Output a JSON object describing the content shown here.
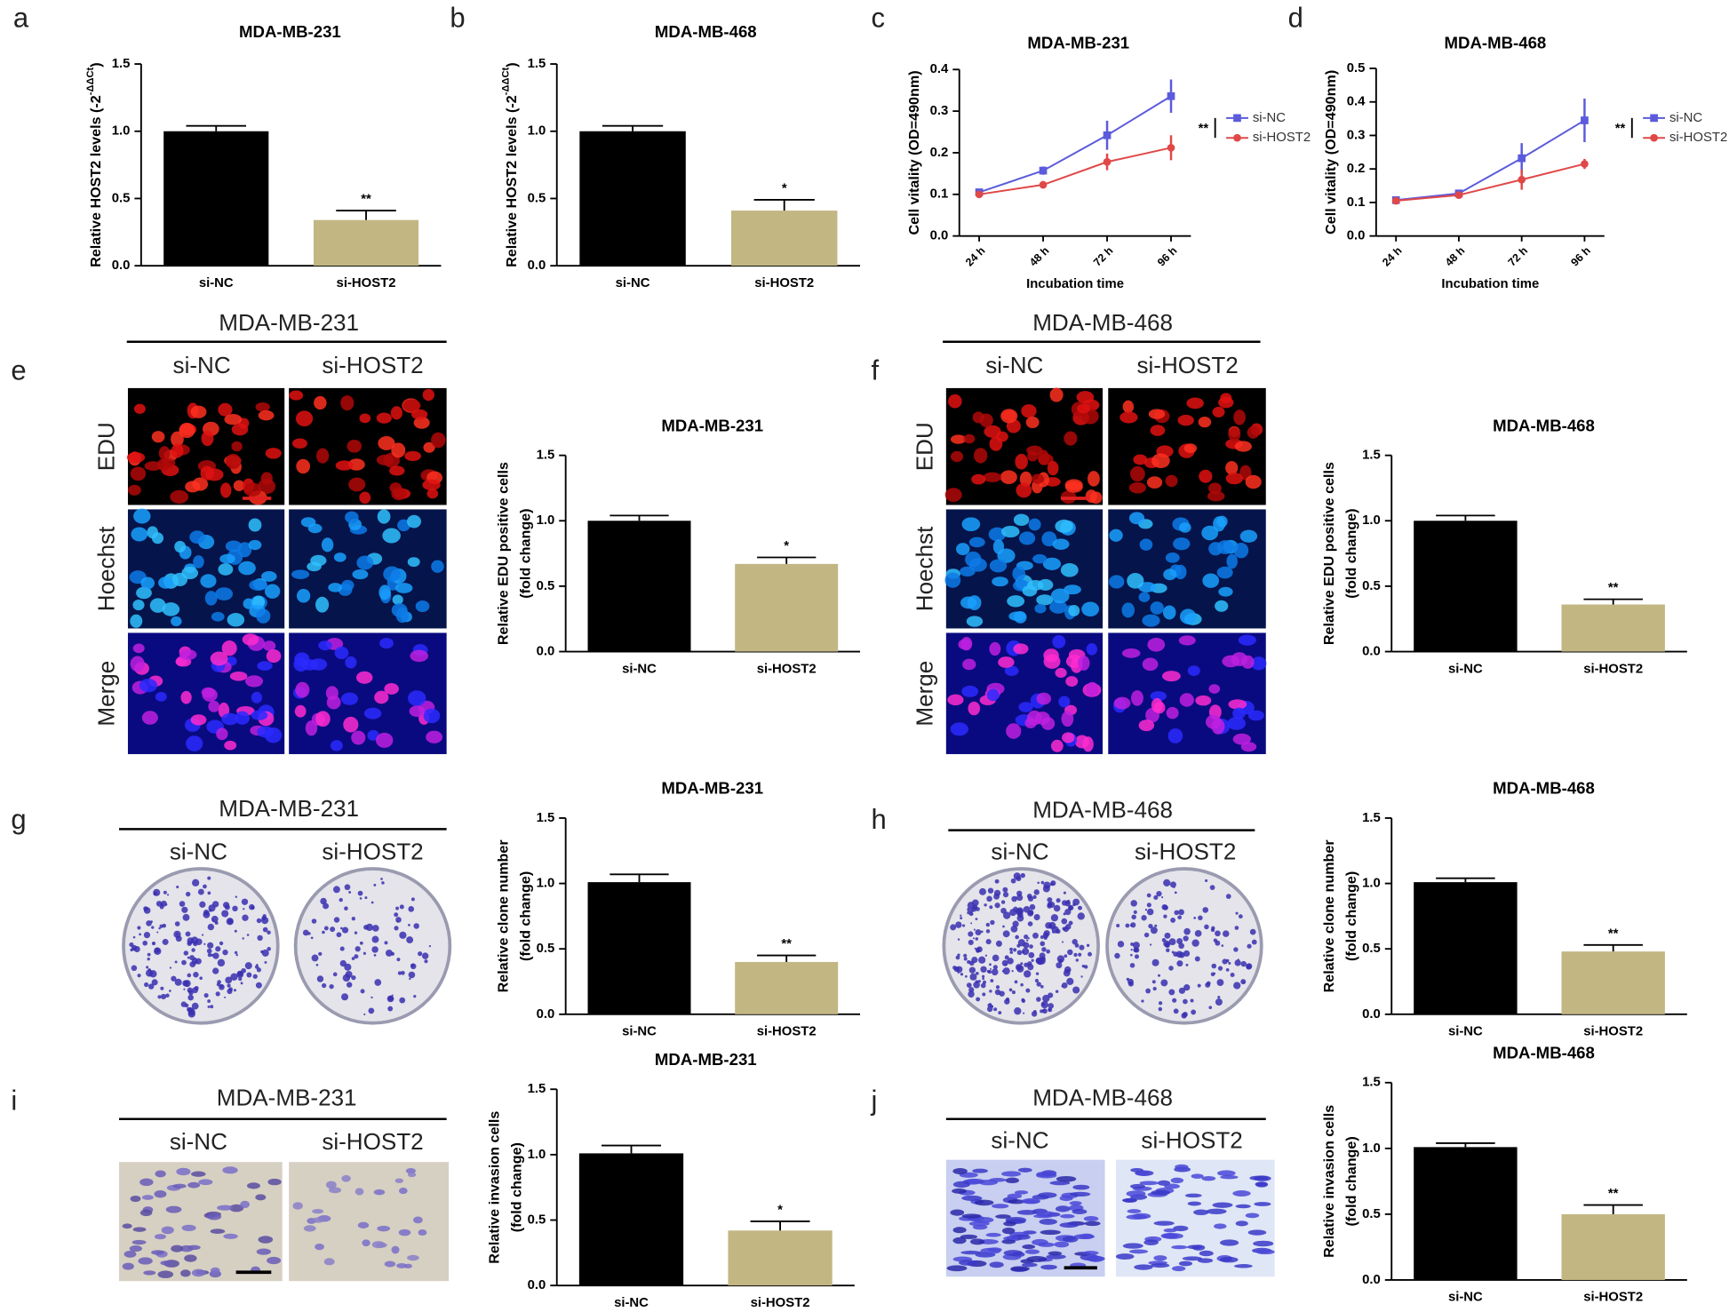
{
  "figure": {
    "panels": [
      {
        "letter": "a"
      },
      {
        "letter": "b"
      },
      {
        "letter": "c"
      },
      {
        "letter": "d"
      },
      {
        "letter": "e",
        "cell_line": "MDA-MB-231",
        "groups": [
          "si-NC",
          "si-HOST2"
        ],
        "rows": [
          "EDU",
          "Hoechst",
          "Merge"
        ]
      },
      {
        "letter": "f",
        "cell_line": "MDA-MB-468",
        "groups": [
          "si-NC",
          "si-HOST2"
        ],
        "rows": [
          "EDU",
          "Hoechst",
          "Merge"
        ]
      },
      {
        "letter": "g",
        "cell_line": "MDA-MB-231",
        "groups": [
          "si-NC",
          "si-HOST2"
        ]
      },
      {
        "letter": "h",
        "cell_line": "MDA-MB-468",
        "groups": [
          "si-NC",
          "si-HOST2"
        ]
      },
      {
        "letter": "i",
        "cell_line": "MDA-MB-231",
        "groups": [
          "si-NC",
          "si-HOST2"
        ]
      },
      {
        "letter": "j",
        "cell_line": "MDA-MB-468",
        "groups": [
          "si-NC",
          "si-HOST2"
        ]
      }
    ]
  },
  "chart_data": [
    {
      "type": "bar",
      "title": "MDA-MB-231",
      "ylabel": "Relative HOST2  levels (-2",
      "ylabel_superscript": "-ΔΔCt",
      "ylabel_end": ")",
      "categories": [
        "si-NC",
        "si-HOST2"
      ],
      "values": [
        1.0,
        0.34
      ],
      "errors": [
        0.04,
        0.07
      ],
      "value_annotations": [
        null,
        "**"
      ],
      "colors": [
        "#000000",
        "#c2b683"
      ],
      "ylim": [
        0,
        1.5
      ],
      "yticks": [
        {
          "value": 0,
          "label": "0.0"
        },
        0.5,
        {
          "value": 1,
          "label": "1.0"
        },
        1.5
      ]
    },
    {
      "type": "bar",
      "title": "MDA-MB-468",
      "ylabel": "Relative HOST2  levels (-2",
      "ylabel_superscript": "-ΔΔCt",
      "ylabel_end": ")",
      "categories": [
        "si-NC",
        "si-HOST2"
      ],
      "values": [
        1.0,
        0.41
      ],
      "errors": [
        0.04,
        0.08
      ],
      "value_annotations": [
        null,
        "*"
      ],
      "colors": [
        "#000000",
        "#c2b683"
      ],
      "ylim": [
        0,
        1.5
      ],
      "yticks": [
        {
          "value": 0,
          "label": "0.0"
        },
        0.5,
        {
          "value": 1,
          "label": "1.0"
        },
        1.5
      ]
    },
    {
      "type": "line",
      "title": "MDA-MB-231",
      "ylabel": "Cell vitality (OD=490nm)",
      "xlabel": "Incubation time",
      "categories": [
        "24 h",
        "48 h",
        "72 h",
        "96 h"
      ],
      "series": [
        {
          "name": "si-NC",
          "color": "#5b5bdb",
          "marker": "square",
          "values": [
            0.105,
            0.157,
            0.242,
            0.336
          ],
          "errors": [
            0.005,
            0.01,
            0.035,
            0.04
          ]
        },
        {
          "name": "si-HOST2",
          "color": "#e04848",
          "marker": "circle",
          "values": [
            0.1,
            0.123,
            0.178,
            0.212
          ],
          "errors": [
            0.005,
            0.008,
            0.02,
            0.03
          ]
        }
      ],
      "significance": "**",
      "ylim": [
        0,
        0.4
      ],
      "yticks": [
        {
          "value": 0,
          "label": "0.0"
        },
        0.1,
        0.2,
        0.3,
        0.4
      ]
    },
    {
      "type": "line",
      "title": "MDA-MB-468",
      "ylabel": "Cell vitality (OD=490nm)",
      "xlabel": "Incubation time",
      "categories": [
        "24 h",
        "48 h",
        "72 h",
        "96 h"
      ],
      "series": [
        {
          "name": "si-NC",
          "color": "#5b5bdb",
          "marker": "square",
          "values": [
            0.107,
            0.127,
            0.232,
            0.345
          ],
          "errors": [
            0.005,
            0.007,
            0.045,
            0.065
          ]
        },
        {
          "name": "si-HOST2",
          "color": "#e04848",
          "marker": "circle",
          "values": [
            0.105,
            0.122,
            0.168,
            0.215
          ],
          "errors": [
            0.005,
            0.005,
            0.03,
            0.015
          ]
        }
      ],
      "significance": "**",
      "ylim": [
        0,
        0.5
      ],
      "yticks": [
        {
          "value": 0,
          "label": "0.0"
        },
        0.1,
        0.2,
        0.3,
        0.4,
        0.5
      ]
    },
    {
      "type": "bar",
      "title": "MDA-MB-231",
      "ylabel_lines": [
        "Relative EDU positive cells",
        "(fold change)"
      ],
      "categories": [
        "si-NC",
        "si-HOST2"
      ],
      "values": [
        1.0,
        0.67
      ],
      "errors": [
        0.04,
        0.05
      ],
      "value_annotations": [
        null,
        "*"
      ],
      "colors": [
        "#000000",
        "#c2b683"
      ],
      "ylim": [
        0,
        1.5
      ],
      "yticks": [
        {
          "value": 0,
          "label": "0.0"
        },
        0.5,
        {
          "value": 1,
          "label": "1.0"
        },
        1.5
      ]
    },
    {
      "type": "bar",
      "title": "MDA-MB-468",
      "ylabel_lines": [
        "Relative EDU positive cells",
        "(fold change)"
      ],
      "categories": [
        "si-NC",
        "si-HOST2"
      ],
      "values": [
        1.0,
        0.36
      ],
      "errors": [
        0.04,
        0.04
      ],
      "value_annotations": [
        null,
        "**"
      ],
      "colors": [
        "#000000",
        "#c2b683"
      ],
      "ylim": [
        0,
        1.5
      ],
      "yticks": [
        {
          "value": 0,
          "label": "0.0"
        },
        0.5,
        {
          "value": 1,
          "label": "1.0"
        },
        1.5
      ]
    },
    {
      "type": "bar",
      "title": "MDA-MB-231",
      "ylabel_lines": [
        "Relative clone number",
        "(fold change)"
      ],
      "categories": [
        "si-NC",
        "si-HOST2"
      ],
      "values": [
        1.01,
        0.4
      ],
      "errors": [
        0.06,
        0.05
      ],
      "value_annotations": [
        null,
        "**"
      ],
      "colors": [
        "#000000",
        "#c2b683"
      ],
      "ylim": [
        0,
        1.5
      ],
      "yticks": [
        {
          "value": 0,
          "label": "0.0"
        },
        0.5,
        {
          "value": 1,
          "label": "1.0"
        },
        1.5
      ]
    },
    {
      "type": "bar",
      "title": "MDA-MB-468",
      "ylabel_lines": [
        "Relative clone number",
        "(fold change)"
      ],
      "categories": [
        "si-NC",
        "si-HOST2"
      ],
      "values": [
        1.01,
        0.48
      ],
      "errors": [
        0.03,
        0.05
      ],
      "value_annotations": [
        null,
        "**"
      ],
      "colors": [
        "#000000",
        "#c2b683"
      ],
      "ylim": [
        0,
        1.5
      ],
      "yticks": [
        {
          "value": 0,
          "label": "0.0"
        },
        0.5,
        {
          "value": 1,
          "label": "1.0"
        },
        1.5
      ]
    },
    {
      "type": "bar",
      "title": "MDA-MB-231",
      "ylabel_lines": [
        "Relative invasion cells",
        "(fold change)"
      ],
      "categories": [
        "si-NC",
        "si-HOST2"
      ],
      "values": [
        1.01,
        0.42
      ],
      "errors": [
        0.06,
        0.07
      ],
      "value_annotations": [
        null,
        "*"
      ],
      "colors": [
        "#000000",
        "#c2b683"
      ],
      "ylim": [
        0,
        1.5
      ],
      "yticks": [
        {
          "value": 0,
          "label": "0.0"
        },
        0.5,
        {
          "value": 1,
          "label": "1.0"
        },
        1.5
      ]
    },
    {
      "type": "bar",
      "title": "MDA-MB-468",
      "ylabel_lines": [
        "Relative invasion cells",
        "(fold change)"
      ],
      "categories": [
        "si-NC",
        "si-HOST2"
      ],
      "values": [
        1.01,
        0.5
      ],
      "errors": [
        0.03,
        0.07
      ],
      "value_annotations": [
        null,
        "**"
      ],
      "colors": [
        "#000000",
        "#c2b683"
      ],
      "ylim": [
        0,
        1.5
      ],
      "yticks": [
        {
          "value": 0,
          "label": "0.0"
        },
        0.5,
        {
          "value": 1,
          "label": "1.0"
        },
        1.5
      ]
    }
  ]
}
